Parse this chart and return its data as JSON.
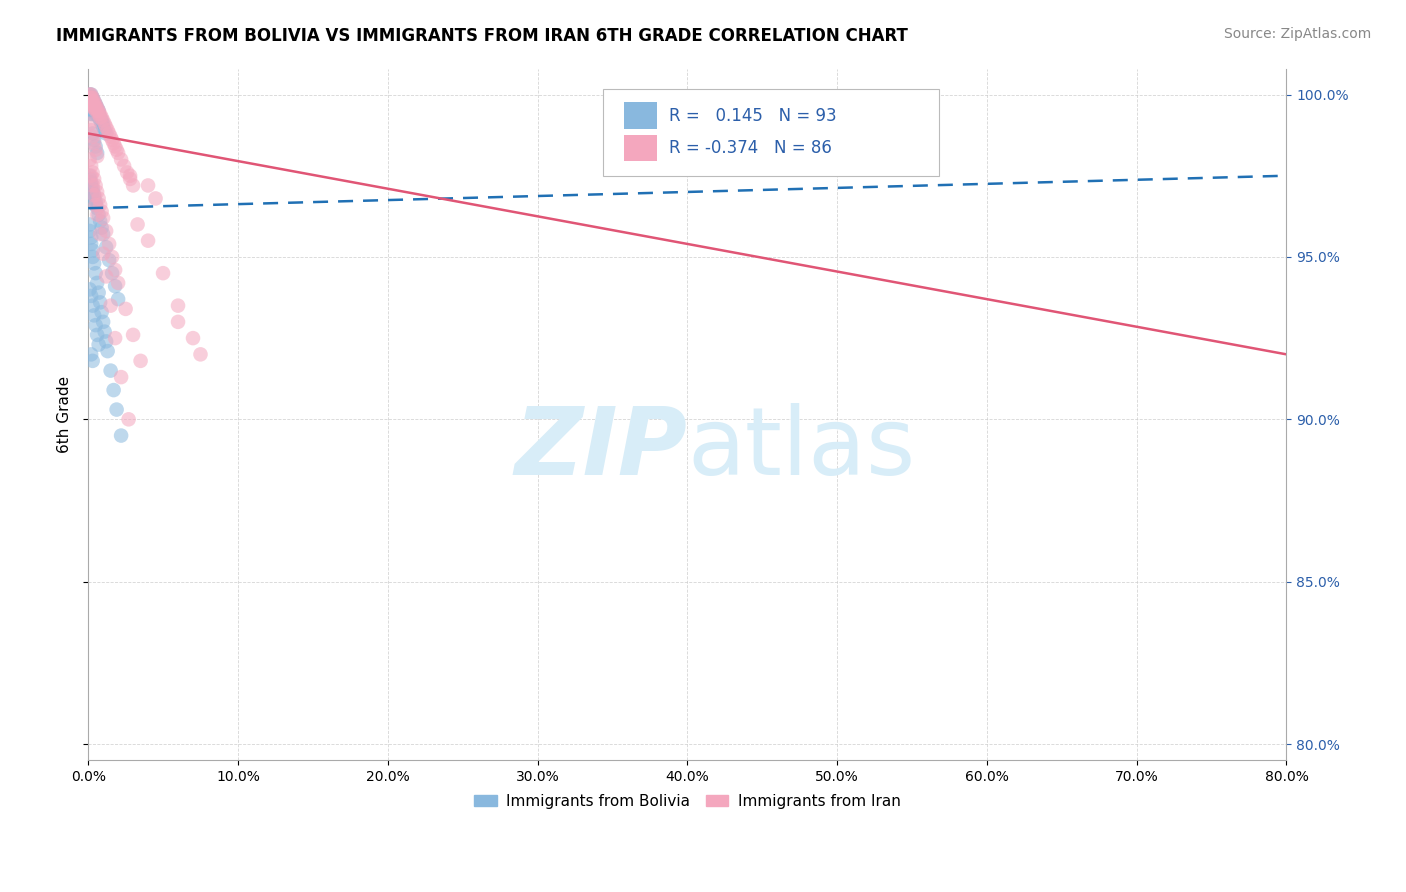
{
  "title": "IMMIGRANTS FROM BOLIVIA VS IMMIGRANTS FROM IRAN 6TH GRADE CORRELATION CHART",
  "source": "Source: ZipAtlas.com",
  "ylabel": "6th Grade",
  "x_min": 0.0,
  "x_max": 0.8,
  "y_min": 0.795,
  "y_max": 1.008,
  "y_ticks": [
    0.8,
    0.85,
    0.9,
    0.95,
    1.0
  ],
  "x_ticks": [
    0.0,
    0.1,
    0.2,
    0.3,
    0.4,
    0.5,
    0.6,
    0.7,
    0.8
  ],
  "r_bolivia": 0.145,
  "n_bolivia": 93,
  "r_iran": -0.374,
  "n_iran": 86,
  "color_bolivia": "#89b8de",
  "color_iran": "#f4a7be",
  "trendline_bolivia_color": "#2070b4",
  "trendline_iran_color": "#e05575",
  "watermark_color": "#d8edf8",
  "watermark_zip": "ZIP",
  "watermark_atlas": "atlas",
  "legend_bolivia": "Immigrants from Bolivia",
  "legend_iran": "Immigrants from Iran",
  "legend_text_color": "#2c5faa",
  "bolivia_x": [
    0.001,
    0.001,
    0.001,
    0.001,
    0.001,
    0.002,
    0.002,
    0.002,
    0.002,
    0.002,
    0.002,
    0.002,
    0.003,
    0.003,
    0.003,
    0.003,
    0.003,
    0.003,
    0.004,
    0.004,
    0.004,
    0.004,
    0.005,
    0.005,
    0.005,
    0.005,
    0.006,
    0.006,
    0.006,
    0.007,
    0.007,
    0.007,
    0.008,
    0.008,
    0.009,
    0.009,
    0.01,
    0.01,
    0.011,
    0.012,
    0.001,
    0.001,
    0.002,
    0.002,
    0.003,
    0.003,
    0.004,
    0.004,
    0.005,
    0.005,
    0.006,
    0.007,
    0.008,
    0.009,
    0.01,
    0.012,
    0.014,
    0.016,
    0.018,
    0.02,
    0.001,
    0.001,
    0.002,
    0.002,
    0.003,
    0.003,
    0.004,
    0.005,
    0.006,
    0.007,
    0.008,
    0.009,
    0.01,
    0.011,
    0.012,
    0.013,
    0.015,
    0.017,
    0.019,
    0.022,
    0.001,
    0.002,
    0.003,
    0.004,
    0.005,
    0.006,
    0.007,
    0.003,
    0.004,
    0.005,
    0.006,
    0.002,
    0.003
  ],
  "bolivia_y": [
    1.0,
    0.999,
    0.998,
    0.997,
    0.996,
    1.0,
    0.999,
    0.998,
    0.997,
    0.996,
    0.995,
    0.994,
    0.999,
    0.998,
    0.997,
    0.996,
    0.995,
    0.994,
    0.998,
    0.997,
    0.996,
    0.995,
    0.997,
    0.996,
    0.995,
    0.994,
    0.996,
    0.995,
    0.994,
    0.995,
    0.994,
    0.993,
    0.993,
    0.992,
    0.992,
    0.991,
    0.991,
    0.99,
    0.989,
    0.988,
    0.975,
    0.974,
    0.973,
    0.972,
    0.971,
    0.97,
    0.969,
    0.968,
    0.967,
    0.966,
    0.965,
    0.963,
    0.961,
    0.959,
    0.957,
    0.953,
    0.949,
    0.945,
    0.941,
    0.937,
    0.96,
    0.958,
    0.956,
    0.954,
    0.952,
    0.95,
    0.948,
    0.945,
    0.942,
    0.939,
    0.936,
    0.933,
    0.93,
    0.927,
    0.924,
    0.921,
    0.915,
    0.909,
    0.903,
    0.895,
    0.94,
    0.938,
    0.935,
    0.932,
    0.929,
    0.926,
    0.923,
    0.988,
    0.986,
    0.984,
    0.982,
    0.92,
    0.918
  ],
  "iran_x": [
    0.001,
    0.001,
    0.001,
    0.002,
    0.002,
    0.002,
    0.002,
    0.003,
    0.003,
    0.003,
    0.003,
    0.004,
    0.004,
    0.004,
    0.005,
    0.005,
    0.005,
    0.006,
    0.006,
    0.007,
    0.007,
    0.008,
    0.008,
    0.009,
    0.01,
    0.011,
    0.012,
    0.013,
    0.014,
    0.015,
    0.016,
    0.017,
    0.018,
    0.019,
    0.02,
    0.022,
    0.024,
    0.026,
    0.028,
    0.03,
    0.001,
    0.002,
    0.003,
    0.004,
    0.005,
    0.006,
    0.007,
    0.008,
    0.009,
    0.01,
    0.012,
    0.014,
    0.016,
    0.018,
    0.02,
    0.025,
    0.03,
    0.035,
    0.04,
    0.045,
    0.002,
    0.003,
    0.004,
    0.005,
    0.006,
    0.008,
    0.01,
    0.012,
    0.015,
    0.018,
    0.022,
    0.027,
    0.033,
    0.04,
    0.05,
    0.06,
    0.07,
    0.075,
    0.001,
    0.002,
    0.003,
    0.004,
    0.005,
    0.006,
    0.028,
    0.06
  ],
  "iran_y": [
    1.0,
    0.999,
    0.998,
    1.0,
    0.999,
    0.998,
    0.997,
    0.999,
    0.998,
    0.997,
    0.996,
    0.998,
    0.997,
    0.996,
    0.997,
    0.996,
    0.995,
    0.996,
    0.995,
    0.995,
    0.994,
    0.994,
    0.993,
    0.993,
    0.992,
    0.991,
    0.99,
    0.989,
    0.988,
    0.987,
    0.986,
    0.985,
    0.984,
    0.983,
    0.982,
    0.98,
    0.978,
    0.976,
    0.974,
    0.972,
    0.98,
    0.978,
    0.976,
    0.974,
    0.972,
    0.97,
    0.968,
    0.966,
    0.964,
    0.962,
    0.958,
    0.954,
    0.95,
    0.946,
    0.942,
    0.934,
    0.926,
    0.918,
    0.972,
    0.968,
    0.975,
    0.972,
    0.969,
    0.966,
    0.963,
    0.957,
    0.951,
    0.944,
    0.935,
    0.925,
    0.913,
    0.9,
    0.96,
    0.955,
    0.945,
    0.935,
    0.925,
    0.92,
    0.991,
    0.989,
    0.987,
    0.985,
    0.983,
    0.981,
    0.975,
    0.93
  ]
}
